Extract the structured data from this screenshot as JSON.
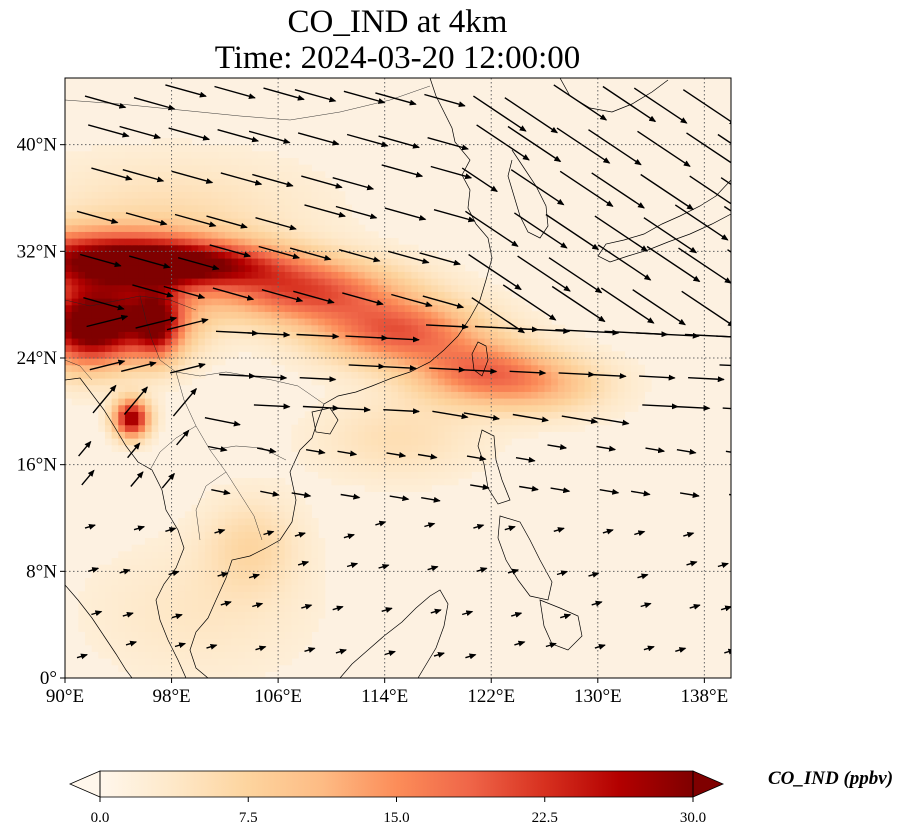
{
  "title": {
    "line1": "CO_IND at 4km",
    "line2": "Time: 2024-03-20 12:00:00"
  },
  "axes": {
    "lon_ticks": [
      "90°E",
      "98°E",
      "106°E",
      "114°E",
      "122°E",
      "130°E",
      "138°E"
    ],
    "lat_ticks": [
      "0°",
      "8°N",
      "16°N",
      "24°N",
      "32°N",
      "40°N"
    ],
    "lon_range": [
      90,
      140
    ],
    "lat_range": [
      0,
      45
    ],
    "gridlines": "dotted"
  },
  "colorbar": {
    "label": "CO_IND (ppbv)",
    "colormap": "OrRd",
    "ticks": [
      "0.0",
      "7.5",
      "15.0",
      "22.5",
      "30.0"
    ],
    "range": [
      0,
      30
    ],
    "extend": "both",
    "colors": [
      "#fff7ec",
      "#fee8c8",
      "#fdd49e",
      "#fdbb84",
      "#fc8d59",
      "#ef6548",
      "#d7301f",
      "#b30000",
      "#7f0000"
    ]
  },
  "field": {
    "plumes": [
      {
        "lon": 93.0,
        "lat": 31.5,
        "w": 9,
        "h": 2.2,
        "v": 24
      },
      {
        "lon": 91.5,
        "lat": 26.5,
        "w": 3.5,
        "h": 3.0,
        "v": 29
      },
      {
        "lon": 96.0,
        "lat": 27.0,
        "w": 4,
        "h": 3,
        "v": 17
      },
      {
        "lon": 100.0,
        "lat": 31.0,
        "w": 7,
        "h": 1.6,
        "v": 16
      },
      {
        "lon": 108.0,
        "lat": 29.0,
        "w": 7,
        "h": 2.3,
        "v": 18
      },
      {
        "lon": 115.0,
        "lat": 26.0,
        "w": 6,
        "h": 2.4,
        "v": 17
      },
      {
        "lon": 121.0,
        "lat": 23.0,
        "w": 5,
        "h": 2.3,
        "v": 14
      },
      {
        "lon": 126.0,
        "lat": 22.0,
        "w": 5,
        "h": 2.2,
        "v": 8
      },
      {
        "lon": 95.0,
        "lat": 19.5,
        "w": 1.3,
        "h": 1.4,
        "v": 27
      },
      {
        "lon": 97.0,
        "lat": 26.5,
        "w": 1.6,
        "h": 2.5,
        "v": 14
      },
      {
        "lon": 104.0,
        "lat": 10.0,
        "w": 3.5,
        "h": 3.5,
        "v": 5
      },
      {
        "lon": 98.0,
        "lat": 35.0,
        "w": 10,
        "h": 4,
        "v": 4
      },
      {
        "lon": 115.0,
        "lat": 18.0,
        "w": 6,
        "h": 3,
        "v": 4
      },
      {
        "lon": 100.0,
        "lat": 5.0,
        "w": 8,
        "h": 5,
        "v": 2.5
      }
    ]
  }
}
